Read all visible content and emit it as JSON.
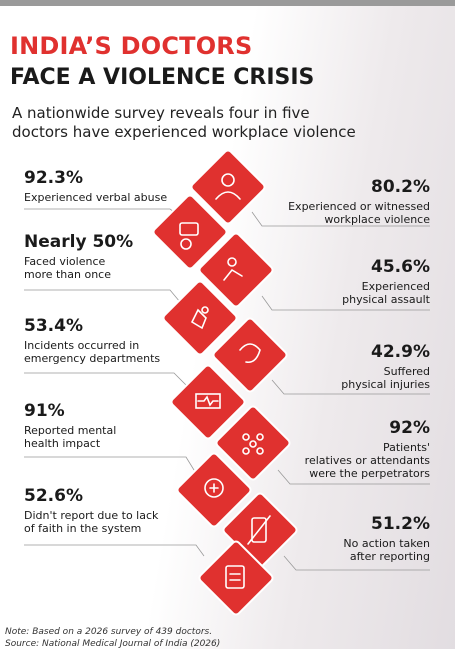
{
  "header": {
    "title": [
      "INDIA’S DOCTORS",
      "FACE A VIOLENCE CRISIS"
    ],
    "subtitle": [
      "A nationwide survey reveals four in five",
      "doctors have experienced workplace violence"
    ]
  },
  "stats": [
    {
      "value": "92.3%",
      "text": [
        "Experienced verbal abuse"
      ]
    },
    {
      "value": "80.2%",
      "text": [
        "Experienced or witnessed",
        "workplace violence"
      ]
    },
    {
      "value": "Nearly 50%",
      "text": [
        "Faced violence",
        "more than once"
      ]
    },
    {
      "value": "45.6%",
      "text": [
        "Experienced",
        "physical assault"
      ]
    },
    {
      "value": "53.4%",
      "text": [
        "Incidents occurred in",
        "emergency departments"
      ]
    },
    {
      "value": "42.9%",
      "text": [
        "Suffered",
        "physical injuries"
      ]
    },
    {
      "value": "91%",
      "text": [
        "Reported mental",
        "health impact"
      ]
    },
    {
      "value": "92%",
      "text": [
        "Patients'",
        "relatives or attendants",
        "were the perpetrators"
      ]
    },
    {
      "value": "52.6%",
      "text": [
        "Didn't report due to lack",
        "of faith in the system"
      ]
    },
    {
      "value": "51.2%",
      "text": [
        "No action taken",
        "after reporting"
      ]
    }
  ],
  "footer": {
    "note": "Note: Based on a 2026 survey of 439 doctors.",
    "source": "Source: National Medical Journal of India (2026)"
  }
}
